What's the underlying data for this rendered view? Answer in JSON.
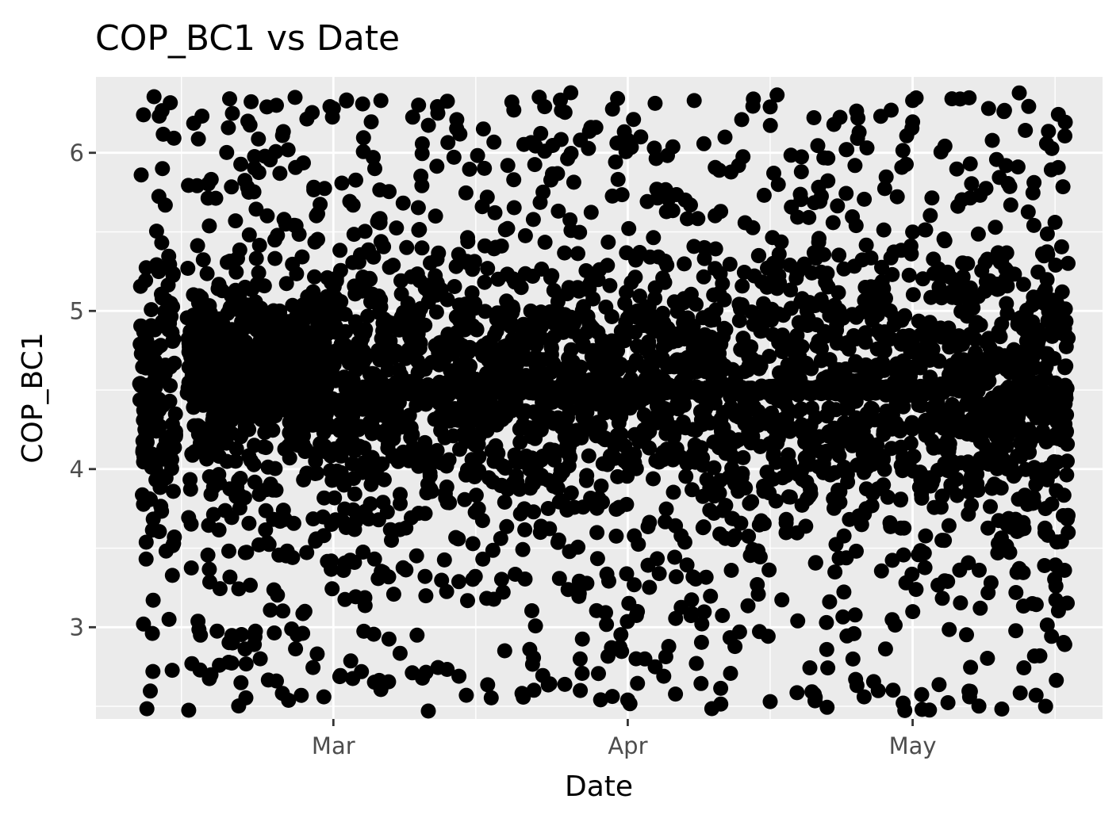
{
  "chart_data": {
    "type": "scatter",
    "title": "COP_BC1 vs Date",
    "xlabel": "Date",
    "ylabel": "COP_BC1",
    "x_type": "date",
    "xlim": [
      "2023-02-04",
      "2023-05-21"
    ],
    "ylim": [
      2.42,
      6.48
    ],
    "x_ticks": [
      {
        "value": "2023-03-01",
        "label": "Mar"
      },
      {
        "value": "2023-04-01",
        "label": "Apr"
      },
      {
        "value": "2023-05-01",
        "label": "May"
      }
    ],
    "x_minor_ticks": [
      "2023-02-13",
      "2023-03-16",
      "2023-04-16",
      "2023-05-16"
    ],
    "y_ticks": [
      3,
      4,
      5,
      6
    ],
    "y_minor_ticks": [
      2.5,
      3.5,
      4.5,
      5.5
    ],
    "grid": true,
    "legend": "none",
    "colors": {
      "panel": "#ebebeb",
      "grid": "#ffffff",
      "points": "#000000",
      "tick_text": "#4d4d4d"
    },
    "x_range": [
      "2023-02-09",
      "2023-05-17"
    ],
    "y_range": [
      2.47,
      6.38
    ],
    "points_per_day": 40,
    "series": [
      {
        "highlighted_points": [
          {
            "x": "2023-02-09",
            "y": 6.24
          },
          {
            "x": "2023-02-09",
            "y": 3.02
          },
          {
            "x": "2023-02-10",
            "y": 2.72
          },
          {
            "x": "2023-02-11",
            "y": 5.9
          },
          {
            "x": "2023-02-15",
            "y": 2.95
          },
          {
            "x": "2023-02-17",
            "y": 2.76
          },
          {
            "x": "2023-02-20",
            "y": 6.2
          },
          {
            "x": "2023-02-22",
            "y": 6.29
          },
          {
            "x": "2023-02-23",
            "y": 6.3
          },
          {
            "x": "2023-02-23",
            "y": 2.66
          },
          {
            "x": "2023-02-26",
            "y": 3.1
          },
          {
            "x": "2023-02-28",
            "y": 2.56
          },
          {
            "x": "2023-03-01",
            "y": 6.28
          },
          {
            "x": "2023-03-06",
            "y": 6.33
          },
          {
            "x": "2023-03-11",
            "y": 2.47
          },
          {
            "x": "2023-03-12",
            "y": 6.25
          },
          {
            "x": "2023-03-14",
            "y": 6.21
          },
          {
            "x": "2023-03-15",
            "y": 2.57
          },
          {
            "x": "2023-03-20",
            "y": 6.27
          },
          {
            "x": "2023-03-26",
            "y": 6.38
          },
          {
            "x": "2023-03-27",
            "y": 2.6
          },
          {
            "x": "2023-04-01",
            "y": 6.08
          },
          {
            "x": "2023-04-01",
            "y": 2.54
          },
          {
            "x": "2023-04-08",
            "y": 6.33
          },
          {
            "x": "2023-04-13",
            "y": 6.21
          },
          {
            "x": "2023-04-16",
            "y": 6.29
          },
          {
            "x": "2023-04-16",
            "y": 2.53
          },
          {
            "x": "2023-04-24",
            "y": 6.02
          },
          {
            "x": "2023-04-25",
            "y": 2.67
          },
          {
            "x": "2023-04-30",
            "y": 2.52
          },
          {
            "x": "2023-05-01",
            "y": 6.33
          },
          {
            "x": "2023-05-02",
            "y": 2.48
          },
          {
            "x": "2023-05-06",
            "y": 6.34
          },
          {
            "x": "2023-05-07",
            "y": 2.56
          },
          {
            "x": "2023-05-09",
            "y": 6.28
          },
          {
            "x": "2023-05-14",
            "y": 2.57
          },
          {
            "x": "2023-05-15",
            "y": 2.5
          },
          {
            "x": "2023-05-16",
            "y": 5.56
          },
          {
            "x": "2023-05-17",
            "y": 4.89
          },
          {
            "x": "2023-05-17",
            "y": 3.36
          }
        ]
      }
    ]
  }
}
